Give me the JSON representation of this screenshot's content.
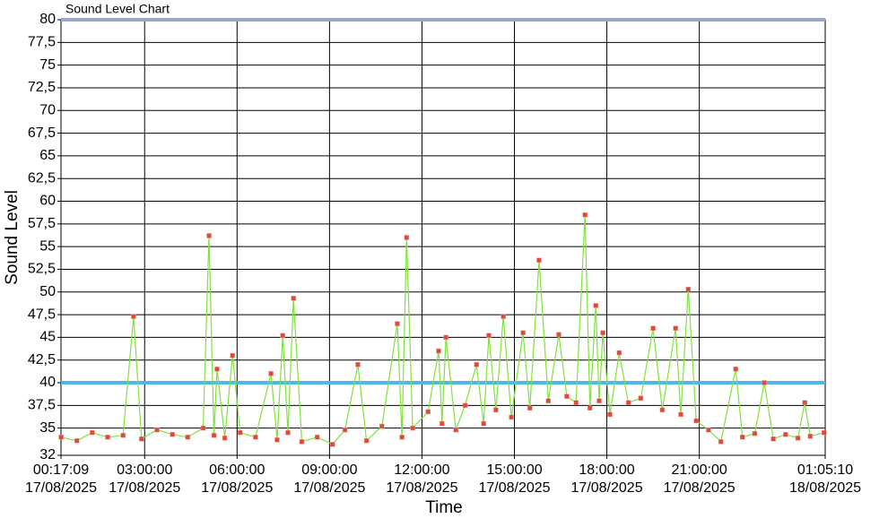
{
  "chart_data": {
    "type": "line",
    "title": "Sound Level Chart",
    "x_label": "Time",
    "y_label": "Sound Level",
    "line_color": "#7ee23a",
    "marker_color": "#e0483c",
    "grid": true,
    "xlim": [
      0.2858,
      25.0861
    ],
    "xticks": [
      {
        "value": 0.2858,
        "label": "00:17:09",
        "date": "17/08/2025"
      },
      {
        "value": 3,
        "label": "03:00:00",
        "date": "17/08/2025"
      },
      {
        "value": 6,
        "label": "06:00:00",
        "date": "17/08/2025"
      },
      {
        "value": 9,
        "label": "09:00:00",
        "date": "17/08/2025"
      },
      {
        "value": 12,
        "label": "12:00:00",
        "date": "17/08/2025"
      },
      {
        "value": 15,
        "label": "15:00:00",
        "date": "17/08/2025"
      },
      {
        "value": 18,
        "label": "18:00:00",
        "date": "17/08/2025"
      },
      {
        "value": 21,
        "label": "21:00:00",
        "date": "17/08/2025"
      },
      {
        "value": 25.0861,
        "label": "01:05:10",
        "date": "18/08/2025"
      }
    ],
    "ylim": [
      32,
      80
    ],
    "yticks": [
      32,
      35,
      {
        "value": 37.5,
        "label": "37,5"
      },
      40,
      {
        "value": 42.5,
        "label": "42,5"
      },
      45,
      {
        "value": 47.5,
        "label": "47,5"
      },
      50,
      {
        "value": 52.5,
        "label": "52,5"
      },
      55,
      {
        "value": 57.5,
        "label": "57,5"
      },
      60,
      {
        "value": 62.5,
        "label": "62,5"
      },
      65,
      {
        "value": 67.5,
        "label": "67,5"
      },
      70,
      {
        "value": 72.5,
        "label": "72,5"
      },
      75,
      {
        "value": 77.5,
        "label": "77,5"
      },
      80
    ],
    "threshold_lines": [
      {
        "value": 40,
        "color": "#4cb8ea"
      },
      {
        "value": 80,
        "color": "#9aa8c8"
      }
    ],
    "x": [
      0.29,
      0.8,
      1.3,
      1.8,
      2.3,
      2.64,
      2.9,
      3.4,
      3.9,
      4.4,
      4.9,
      5.09,
      5.25,
      5.35,
      5.6,
      5.85,
      6.1,
      6.6,
      7.1,
      7.3,
      7.48,
      7.65,
      7.83,
      8.1,
      8.6,
      9.1,
      9.5,
      9.92,
      10.2,
      10.7,
      11.2,
      11.35,
      11.5,
      11.7,
      12.2,
      12.54,
      12.65,
      12.78,
      13.1,
      13.4,
      13.77,
      14.0,
      14.17,
      14.4,
      14.64,
      14.9,
      15.28,
      15.5,
      15.8,
      16.1,
      16.44,
      16.7,
      17.0,
      17.29,
      17.45,
      17.64,
      17.75,
      17.87,
      18.1,
      18.4,
      18.7,
      19.1,
      19.5,
      19.8,
      20.23,
      20.4,
      20.64,
      20.9,
      21.3,
      21.7,
      22.18,
      22.4,
      22.8,
      23.11,
      23.4,
      23.8,
      24.2,
      24.42,
      24.6,
      25.05
    ],
    "values": [
      34.0,
      33.6,
      34.5,
      34.0,
      34.2,
      47.3,
      33.8,
      34.8,
      34.3,
      34.0,
      35.0,
      56.2,
      34.2,
      41.5,
      33.9,
      43.0,
      34.5,
      34.0,
      41.0,
      33.7,
      45.2,
      34.5,
      49.3,
      33.5,
      34.0,
      33.2,
      34.8,
      42.0,
      33.6,
      35.2,
      46.5,
      34.0,
      56.0,
      35.0,
      36.8,
      43.5,
      35.5,
      45.0,
      34.8,
      37.5,
      42.0,
      35.5,
      45.2,
      37.0,
      47.3,
      36.2,
      45.5,
      37.2,
      53.5,
      38.0,
      45.3,
      38.5,
      37.8,
      58.5,
      37.2,
      48.5,
      38.0,
      45.5,
      36.5,
      43.3,
      37.8,
      38.3,
      46.0,
      37.0,
      46.0,
      36.5,
      50.3,
      35.8,
      34.8,
      33.5,
      41.5,
      34.0,
      34.4,
      40.0,
      33.8,
      34.3,
      33.9,
      37.8,
      34.1,
      34.5
    ]
  }
}
